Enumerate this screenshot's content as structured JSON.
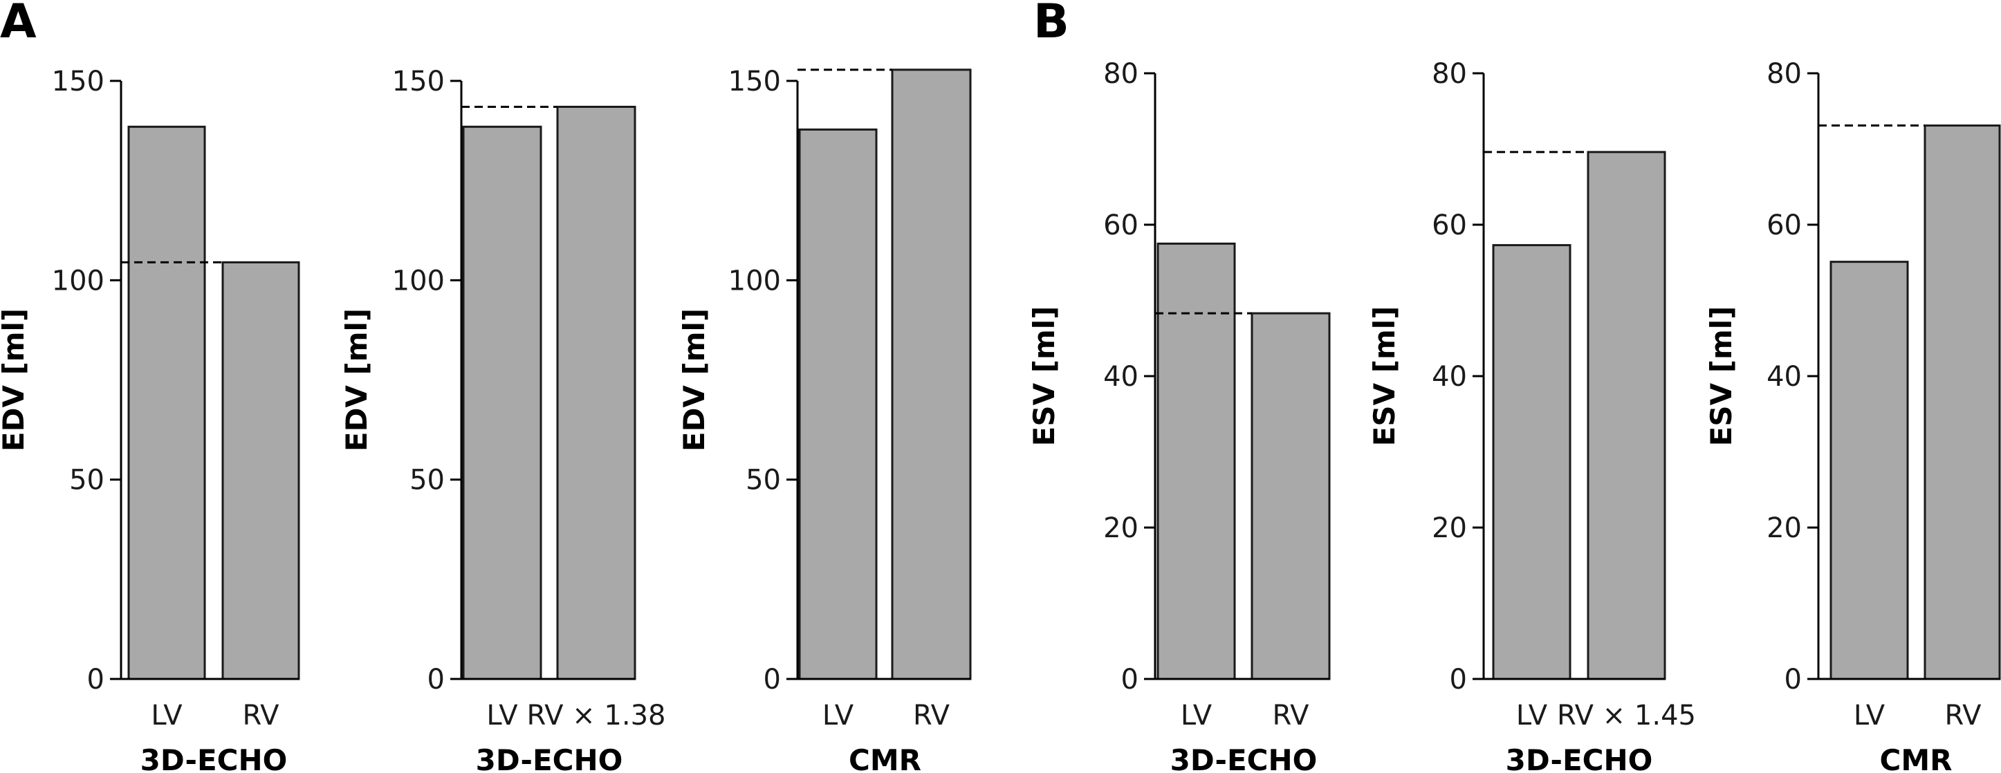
{
  "panels": [
    {
      "letter": "A"
    },
    {
      "letter": "B"
    }
  ],
  "colors": {
    "bar_fill": "#a9a9a9",
    "bar_stroke": "#1a1a1a",
    "axis": "#000000",
    "reference_line": "#000000"
  },
  "chart_data": [
    {
      "type": "bar",
      "panel": "A",
      "categories": [
        "LV",
        "RV"
      ],
      "values": [
        138.5,
        104.5
      ],
      "ylabel": "EDV [ml]",
      "xlabel": "3D-ECHO",
      "ylim": [
        0,
        150
      ],
      "yticks": [
        0,
        50,
        100,
        150
      ],
      "reference_line": 104.5,
      "reference_style": "dashed"
    },
    {
      "type": "bar",
      "panel": "A",
      "categories": [
        "LV",
        "RV × 1.38"
      ],
      "values": [
        138.5,
        143.5
      ],
      "ylabel": "EDV [ml]",
      "xlabel": "3D-ECHO",
      "ylim": [
        0,
        150
      ],
      "yticks": [
        0,
        50,
        100,
        150
      ],
      "reference_line": 143.5,
      "reference_style": "dashed"
    },
    {
      "type": "bar",
      "panel": "A",
      "categories": [
        "LV",
        "RV"
      ],
      "values": [
        137.8,
        152.8
      ],
      "ylabel": "EDV [ml]",
      "xlabel": "CMR",
      "ylim": [
        0,
        150
      ],
      "yticks": [
        0,
        50,
        100,
        150
      ],
      "reference_line": 152.8,
      "reference_style": "dashed"
    },
    {
      "type": "bar",
      "panel": "B",
      "categories": [
        "LV",
        "RV"
      ],
      "values": [
        57.5,
        48.3
      ],
      "ylabel": "ESV [ml]",
      "xlabel": "3D-ECHO",
      "ylim": [
        0,
        80
      ],
      "yticks": [
        0,
        20,
        40,
        60,
        80
      ],
      "reference_line": 48.3,
      "reference_style": "dashed"
    },
    {
      "type": "bar",
      "panel": "B",
      "categories": [
        "LV",
        "RV × 1.45"
      ],
      "values": [
        57.3,
        69.6
      ],
      "ylabel": "ESV [ml]",
      "xlabel": "3D-ECHO",
      "ylim": [
        0,
        80
      ],
      "yticks": [
        0,
        20,
        40,
        60,
        80
      ],
      "reference_line": 69.6,
      "reference_style": "dashed"
    },
    {
      "type": "bar",
      "panel": "B",
      "categories": [
        "LV",
        "RV"
      ],
      "values": [
        55.1,
        73.1
      ],
      "ylabel": "ESV [ml]",
      "xlabel": "CMR",
      "ylim": [
        0,
        80
      ],
      "yticks": [
        0,
        20,
        40,
        60,
        80
      ],
      "reference_line": 73.1,
      "reference_style": "dashed"
    }
  ]
}
